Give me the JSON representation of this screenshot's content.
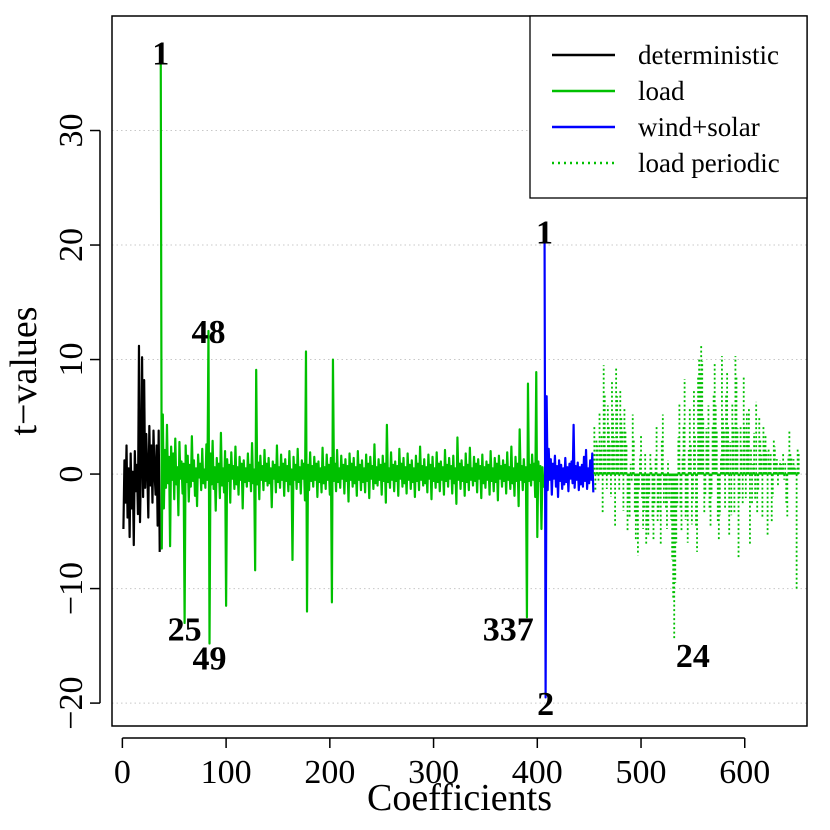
{
  "chart_data": {
    "type": "line",
    "xlabel": "Coefficients",
    "ylabel": "t−values",
    "xlim": [
      -10,
      660
    ],
    "ylim": [
      -22,
      40
    ],
    "xticks": [
      0,
      100,
      200,
      300,
      400,
      500,
      600
    ],
    "xtick_labels": [
      "0",
      "100",
      "200",
      "300",
      "400",
      "500",
      "600"
    ],
    "yticks": [
      -20,
      -10,
      0,
      10,
      20,
      30
    ],
    "ytick_labels": [
      "−20",
      "−10",
      "0",
      "10",
      "20",
      "30"
    ],
    "grid": "horizontal dotted",
    "legend_position": "top-right",
    "legend": [
      {
        "label": "deterministic",
        "color": "#000000",
        "style": "solid"
      },
      {
        "label": "load",
        "color": "#00c000",
        "style": "solid"
      },
      {
        "label": "wind+solar",
        "color": "#0000ff",
        "style": "solid"
      },
      {
        "label": "load periodic",
        "color": "#00c000",
        "style": "dotted"
      }
    ],
    "series": [
      {
        "name": "deterministic",
        "color": "#000000",
        "style": "solid",
        "x_start": 1,
        "values": [
          -4.8,
          1.2,
          -2.5,
          2.5,
          -3.8,
          0.5,
          -5.5,
          1.8,
          -3.0,
          0.2,
          -6.2,
          2.0,
          -1.5,
          0.8,
          -3.5,
          11.2,
          -4.2,
          1.0,
          10.2,
          -2.0,
          8.2,
          -1.2,
          3.5,
          0.5,
          -3.8,
          4.2,
          -1.0,
          2.5,
          -2.5,
          3.8,
          0.2,
          -1.8,
          2.5,
          -4.5,
          3.8,
          -6.8
        ]
      },
      {
        "name": "load",
        "color": "#00c000",
        "style": "solid",
        "x_start": 37,
        "values": [
          36.5,
          -6.5,
          5.2,
          -3.0,
          2.1,
          -1.2,
          4.3,
          -0.8,
          1.5,
          -6.3,
          2.4,
          -0.5,
          1.8,
          -2.2,
          3.1,
          -0.9,
          0.6,
          -3.6,
          2.8,
          -0.4,
          1.1,
          -1.7,
          0.9,
          -13.0,
          2.5,
          -0.7,
          1.6,
          -2.4,
          0.8,
          -1.1,
          3.3,
          -0.6,
          1.2,
          -1.9,
          0.5,
          -2.8,
          1.7,
          -0.3,
          0.9,
          -1.4,
          2.2,
          -0.8,
          0.4,
          -1.2,
          2.6,
          -0.5,
          12.5,
          -14.8,
          1.8,
          -0.9,
          2.9,
          -1.3,
          0.6,
          -3.2,
          1.4,
          -0.7,
          0.9,
          -2.1,
          3.6,
          -1.0,
          0.5,
          -1.6,
          2.0,
          -11.5,
          1.3,
          -0.6,
          0.8,
          -2.5,
          1.9,
          -0.4,
          0.7,
          -1.3,
          2.4,
          -0.9,
          0.6,
          -1.8,
          1.5,
          -0.5,
          0.9,
          -3.0,
          1.2,
          -0.7,
          0.5,
          -1.1,
          1.8,
          -0.6,
          0.8,
          -1.5,
          2.7,
          -0.8,
          0.4,
          -8.4,
          9.1,
          -0.9,
          1.0,
          -2.2,
          1.6,
          -0.5,
          0.7,
          -1.4,
          2.1,
          -0.6,
          0.9,
          -1.0,
          1.4,
          -0.8,
          0.5,
          -2.9,
          1.1,
          -0.4,
          0.8,
          -1.6,
          2.5,
          -0.7,
          0.6,
          -1.2,
          1.7,
          -0.5,
          0.9,
          -1.9,
          1.3,
          -0.6,
          0.7,
          -1.5,
          2.0,
          -0.9,
          0.4,
          -7.5,
          1.5,
          -0.5,
          0.8,
          -1.3,
          2.2,
          -0.7,
          0.6,
          -1.7,
          1.2,
          -0.4,
          0.9,
          -2.3,
          10.7,
          -12.0,
          0.8,
          -1.4,
          1.9,
          -0.6,
          0.7,
          -1.1,
          1.5,
          -0.5,
          0.9,
          -2.0,
          1.1,
          -0.7,
          0.5,
          -1.6,
          2.3,
          -0.8,
          0.6,
          -1.3,
          1.7,
          -0.5,
          0.8,
          -1.8,
          1.4,
          -11.2,
          10.0,
          -0.6,
          0.9,
          -1.5,
          2.1,
          -0.7,
          0.5,
          -1.2,
          1.6,
          -0.4,
          0.8,
          -1.7,
          1.3,
          -0.6,
          0.7,
          -2.4,
          1.8,
          -0.5,
          0.9,
          -1.1,
          1.4,
          -0.8,
          0.6,
          -1.9,
          2.0,
          -0.5,
          0.8,
          -1.4,
          1.2,
          -0.7,
          0.5,
          -1.6,
          1.7,
          -0.6,
          0.9,
          -2.1,
          1.5,
          -0.4,
          0.7,
          -1.3,
          2.6,
          -0.8,
          0.6,
          -1.0,
          1.3,
          -0.5,
          0.8,
          -1.8,
          1.6,
          -0.6,
          0.9,
          -2.5,
          4.3,
          -0.7,
          0.5,
          -1.2,
          1.9,
          -0.5,
          0.8,
          -1.5,
          1.1,
          -0.6,
          0.7,
          -1.9,
          2.2,
          -0.4,
          0.9,
          -1.1,
          1.4,
          -0.8,
          0.6,
          -1.7,
          1.8,
          -0.5,
          0.8,
          -1.3,
          1.2,
          -0.7,
          0.5,
          -2.0,
          1.6,
          -0.6,
          0.9,
          -1.4,
          2.4,
          -0.5,
          0.7,
          -1.0,
          1.3,
          -0.8,
          0.6,
          -1.6,
          1.7,
          -0.4,
          0.8,
          -2.2,
          1.5,
          -0.6,
          0.5,
          -1.2,
          1.9,
          -0.7,
          0.9,
          -1.5,
          1.1,
          -0.5,
          0.6,
          -1.8,
          2.1,
          -0.6,
          0.8,
          -1.1,
          1.4,
          -0.4,
          0.7,
          -1.7,
          1.6,
          -0.8,
          0.5,
          -2.6,
          3.2,
          -0.5,
          0.9,
          -1.3,
          1.2,
          -0.6,
          0.6,
          -1.9,
          1.8,
          -0.7,
          0.8,
          -1.4,
          2.3,
          -0.5,
          0.5,
          -1.0,
          1.5,
          -0.6,
          0.9,
          -1.6,
          1.3,
          -0.4,
          0.7,
          -2.1,
          1.7,
          -0.8,
          0.6,
          -1.2,
          1.1,
          -0.5,
          0.8,
          -1.8,
          2.0,
          -0.6,
          0.5,
          -1.5,
          1.4,
          -0.7,
          0.9,
          -2.3,
          1.6,
          -0.4,
          0.7,
          -1.1,
          1.2,
          -0.6,
          0.8,
          -1.7,
          1.9,
          -0.5,
          0.6,
          -1.3,
          2.4,
          -0.8,
          0.5,
          -1.9,
          1.5,
          -0.6,
          0.9,
          -2.8,
          3.9,
          -0.5,
          0.7,
          -1.4,
          1.3,
          -0.7,
          0.6,
          -12.5,
          7.9,
          -0.6,
          0.8,
          -1.0,
          1.7,
          -0.5,
          0.9,
          -2.0,
          8.9,
          -5.5,
          1.1,
          -0.6,
          0.7,
          -4.8,
          0.6,
          -1.2
        ]
      },
      {
        "name": "wind+solar",
        "color": "#0000ff",
        "style": "solid",
        "x_start": 407,
        "values": [
          20.8,
          -19.5,
          6.8,
          -1.4,
          2.2,
          -0.5,
          1.3,
          -1.8,
          0.9,
          -0.4,
          1.6,
          -1.1,
          0.7,
          -2.0,
          1.2,
          -0.6,
          0.8,
          -1.3,
          0.5,
          -0.9,
          1.4,
          -0.7,
          0.6,
          -1.5,
          0.9,
          -0.4,
          1.1,
          -0.8,
          4.3,
          -1.2,
          0.7,
          -0.5,
          1.0,
          -1.4,
          0.6,
          -0.9,
          0.8,
          -1.1,
          1.5,
          -0.6,
          2.1,
          -1.3,
          0.5,
          -0.8,
          1.2,
          -0.5,
          1.8,
          -1.6
        ]
      },
      {
        "name": "load periodic",
        "color": "#00c000",
        "style": "dotted",
        "x_start": 455,
        "values": [
          4.2,
          -1.5,
          3.0,
          2.5,
          -0.8,
          5.4,
          2.1,
          3.5,
          -3.5,
          9.5,
          7.0,
          2.3,
          -1.3,
          6.0,
          4.1,
          2.6,
          -2.0,
          8.1,
          5.4,
          3.2,
          -4.5,
          9.3,
          6.8,
          2.9,
          -1.5,
          7.3,
          5.1,
          3.9,
          -3.2,
          5.8,
          3.7,
          2.6,
          -5.0,
          -2.5,
          -3.8,
          0.9,
          -0.7,
          5.2,
          3.0,
          -3.5,
          -5.8,
          -4.3,
          -7.1,
          -1.5,
          1.6,
          3.5,
          -2.1,
          -4.8,
          -3.2,
          1.9,
          -6.1,
          -4.6,
          -5.3,
          -2.0,
          1.8,
          0.6,
          -4.0,
          -5.8,
          -2.7,
          1.4,
          4.2,
          -4.1,
          -3.3,
          -1.5,
          -6.1,
          2.9,
          5.2,
          -2.6,
          -1.0,
          -3.0,
          -4.8,
          1.2,
          -2.2,
          -0.8,
          -4.0,
          -7.5,
          -11.0,
          -14.5,
          -9.5,
          -6.0,
          -2.8,
          3.2,
          6.2,
          -3.0,
          -5.0,
          1.6,
          4.2,
          8.3,
          -4.0,
          -3.4,
          -6.0,
          2.1,
          5.8,
          2.7,
          -4.4,
          -2.2,
          7.4,
          3.5,
          -4.7,
          -6.8,
          8.5,
          10.0,
          9.0,
          11.3,
          9.9,
          5.0,
          -3.4,
          -1.9,
          4.0,
          3.2,
          6.0,
          -3.0,
          -4.7,
          -2.0,
          4.2,
          7.0,
          9.6,
          6.0,
          3.8,
          -4.1,
          -5.9,
          -3.6,
          1.6,
          10.3,
          5.0,
          3.9,
          -3.1,
          6.9,
          9.0,
          4.1,
          -5.4,
          2.8,
          -3.6,
          6.2,
          4.1,
          -3.4,
          10.3,
          8.5,
          4.0,
          -7.3,
          -2.1,
          4.3,
          2.2,
          -2.6,
          8.6,
          4.1,
          -2.1,
          5.5,
          3.3,
          5.7,
          -6.2,
          2.3,
          -2.7,
          0.9,
          3.6,
          -2.3,
          6.3,
          -3.5,
          -1.4,
          4.9,
          3.0,
          1.7,
          -3.9,
          4.2,
          2.6,
          3.5,
          2.0,
          -5.4,
          2.2,
          1.0,
          1.8,
          -4.2,
          -2.0,
          3.1,
          2.4,
          1.1,
          1.3,
          -1.1,
          0.7,
          1.2,
          0.9,
          0.6,
          1.9,
          -0.5,
          1.1,
          -2.5,
          -3.7,
          1.6,
          3.9,
          1.9,
          1.5,
          0.6,
          1.3,
          0.8,
          0.5,
          -10.2,
          2.2,
          1.8
        ]
      }
    ],
    "annotations": [
      {
        "text": "1",
        "x": 37,
        "y": 36.8
      },
      {
        "text": "48",
        "x": 83,
        "y": 12.5
      },
      {
        "text": "25",
        "x": 60,
        "y": -13.5
      },
      {
        "text": "49",
        "x": 84,
        "y": -16.0
      },
      {
        "text": "337",
        "x": 372,
        "y": -13.5
      },
      {
        "text": "1",
        "x": 407,
        "y": 21.2
      },
      {
        "text": "2",
        "x": 408,
        "y": -20.0
      },
      {
        "text": "24",
        "x": 550,
        "y": -15.8
      }
    ]
  }
}
